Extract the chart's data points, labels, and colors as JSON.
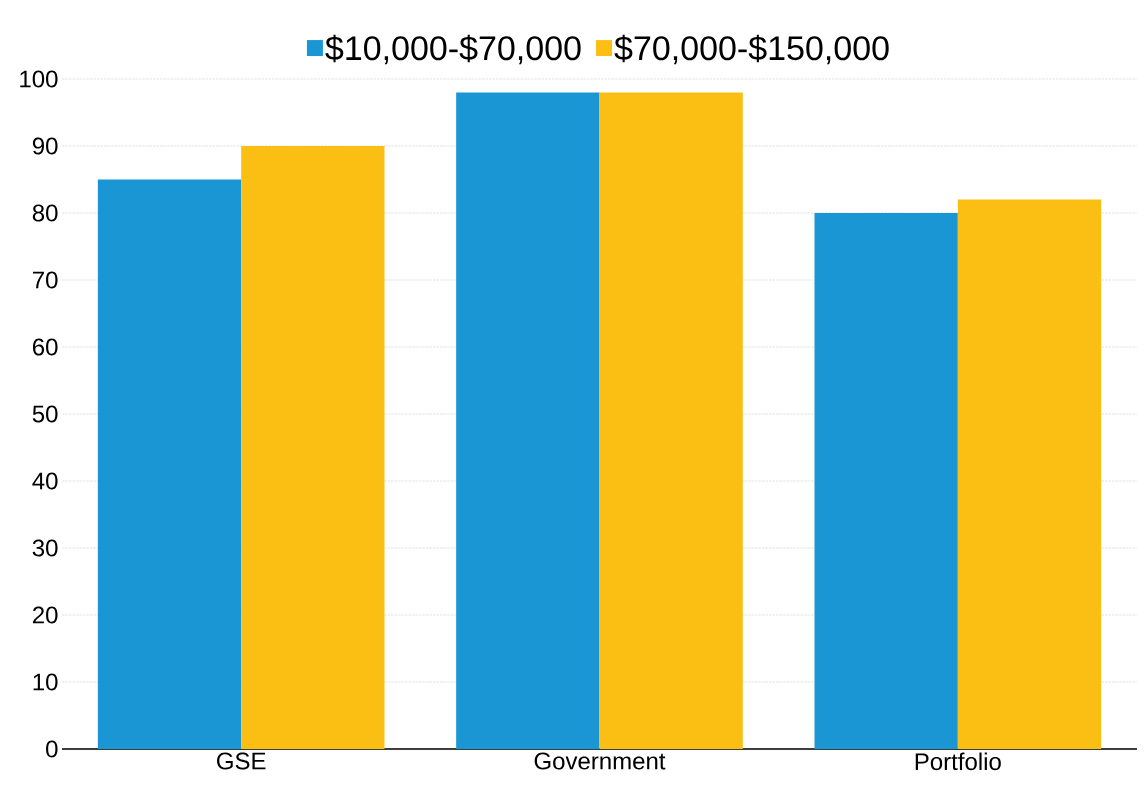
{
  "chart_data": {
    "type": "bar",
    "categories": [
      "GSE",
      "Government",
      "Portfolio"
    ],
    "series": [
      {
        "name": "$10,000-$70,000",
        "color": "#1a96d4",
        "values": [
          85,
          98,
          80
        ]
      },
      {
        "name": "$70,000-$150,000",
        "color": "#fbbf14",
        "values": [
          90,
          98,
          82
        ]
      }
    ],
    "ylim": [
      0,
      100
    ],
    "yticks": [
      0,
      10,
      20,
      30,
      40,
      50,
      60,
      70,
      80,
      90,
      100
    ],
    "grid": "y",
    "legend": "top"
  }
}
